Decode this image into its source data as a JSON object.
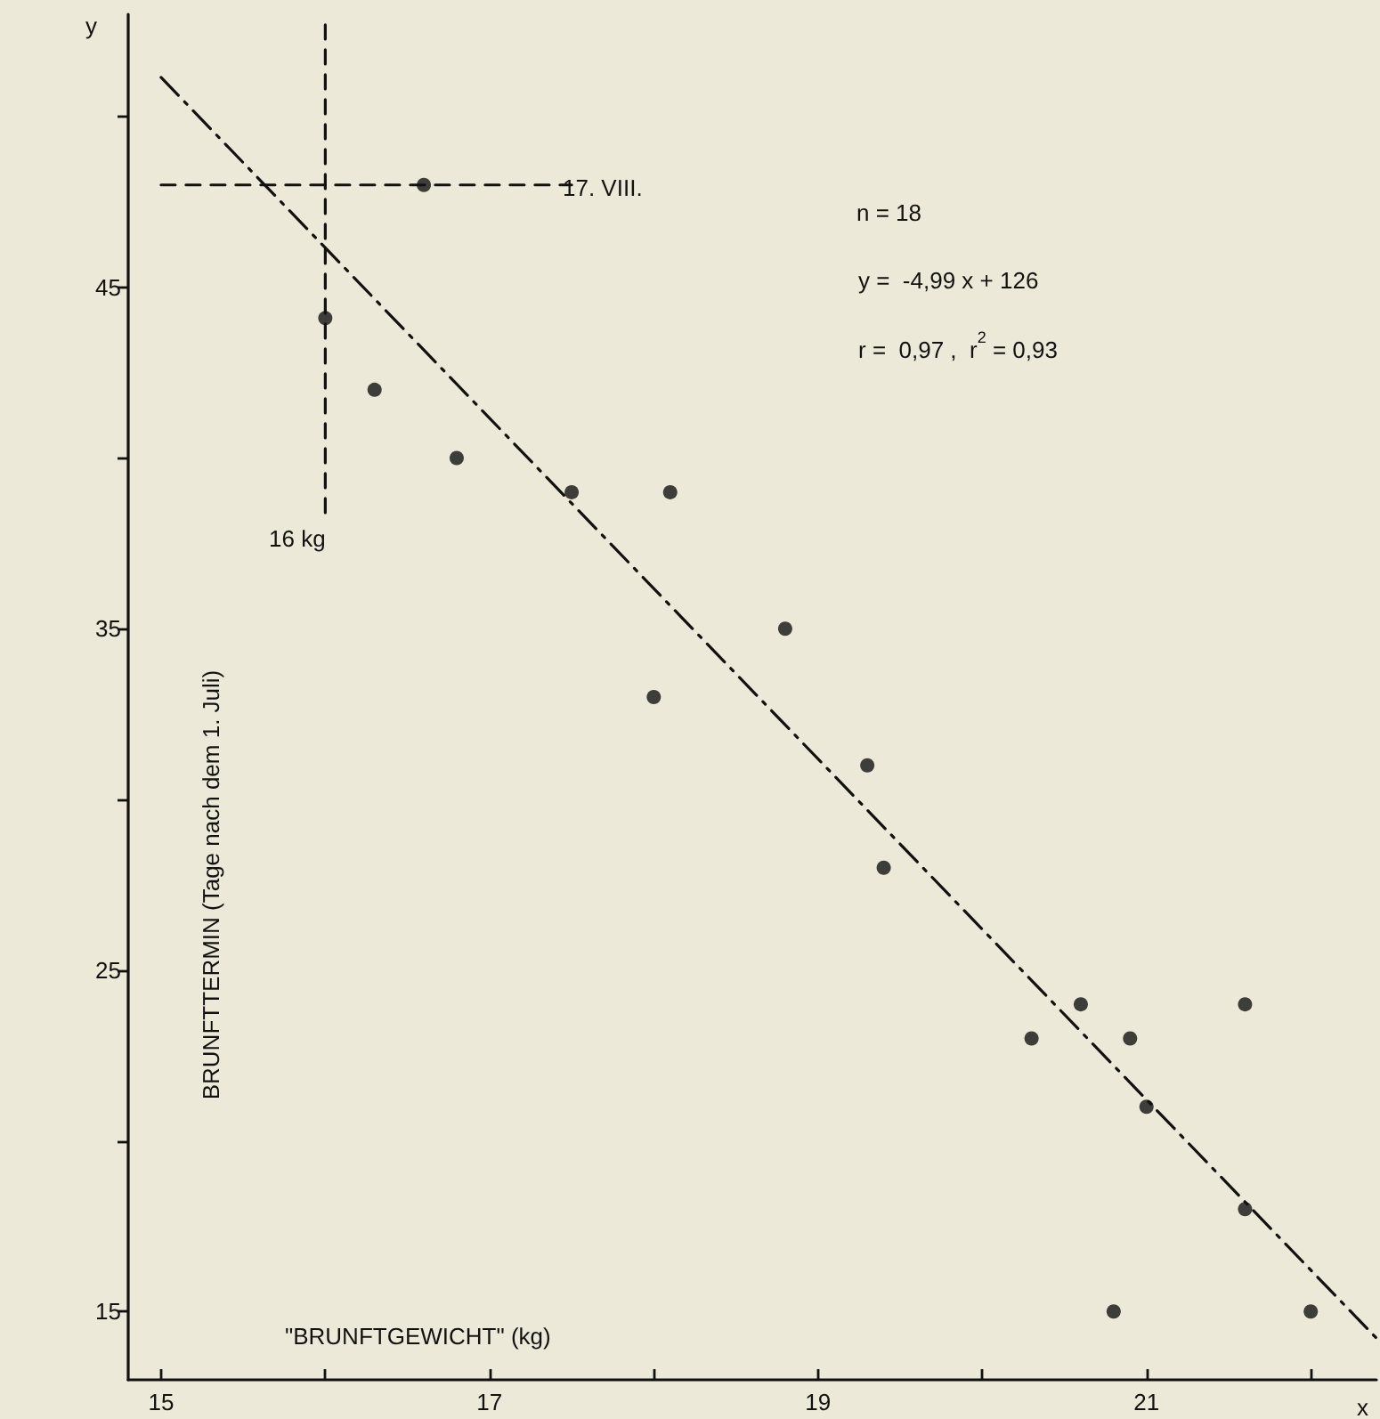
{
  "chart_data": {
    "type": "scatter",
    "xlabel": "\"BRUNFTGEWICHT\" (kg)",
    "ylabel": "BRUNFTTERMIN (Tage nach dem 1. Juli)",
    "x": [
      16.6,
      16.0,
      16.3,
      16.8,
      17.5,
      18.1,
      18.0,
      18.8,
      19.3,
      19.4,
      20.3,
      20.6,
      20.9,
      21.0,
      21.6,
      21.6,
      20.8,
      22.0
    ],
    "series": [
      {
        "color": "#111111",
        "marker": "circle",
        "values": [
          48.0,
          44.1,
          42.0,
          40.0,
          39.0,
          39.0,
          33.0,
          35.0,
          31.0,
          28.0,
          23.0,
          24.0,
          23.0,
          21.0,
          24.0,
          18.0,
          15.0,
          15.0
        ]
      },
      {
        "type": "line",
        "color": "#111111",
        "marker": "none",
        "line_style": "dashdot",
        "x": [
          15.0,
          22.4
        ],
        "values": [
          51.15,
          14.22
        ]
      },
      {
        "type": "line",
        "color": "#111111",
        "marker": "none",
        "line_style": "dashed",
        "x": [
          16.0,
          16.0
        ],
        "values": [
          38.4,
          53.0
        ]
      },
      {
        "type": "line",
        "color": "#111111",
        "marker": "none",
        "line_style": "dashed",
        "x": [
          15.0,
          17.5
        ],
        "values": [
          48.0,
          48.0
        ]
      }
    ],
    "annotations": [
      "16 kg",
      "17. VIII.",
      "n = 18",
      "y =  -4,99 x + 126",
      "r =  0,97 ,  r$^{2}$ = 0,93",
      "y",
      "x"
    ],
    "xlim": [
      14.8,
      22.4
    ],
    "ylim": [
      13,
      53
    ],
    "xticks": [
      15,
      {
        "value": 16,
        "label": null
      },
      17,
      {
        "value": 18,
        "label": null
      },
      19,
      {
        "value": 20,
        "label": null
      },
      21,
      {
        "value": 22,
        "label": null
      }
    ],
    "yticks": [
      15,
      {
        "value": 20,
        "label": null
      },
      25,
      {
        "value": 30,
        "label": null
      },
      35,
      {
        "value": 40,
        "label": null
      },
      45,
      {
        "value": 50,
        "label": null
      }
    ],
    "grid": false
  }
}
